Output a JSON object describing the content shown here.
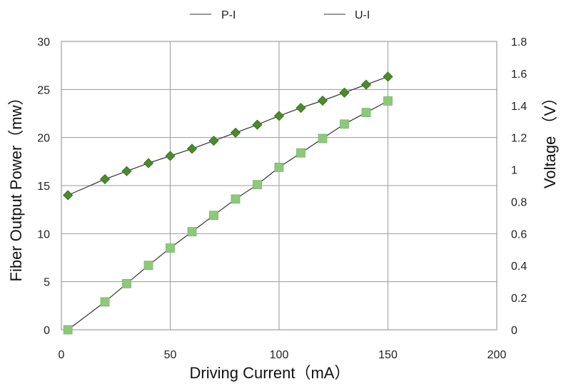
{
  "chart_data": {
    "type": "line",
    "x": [
      3,
      20,
      30,
      40,
      50,
      60,
      70,
      80,
      90,
      100,
      110,
      120,
      130,
      140,
      150
    ],
    "series": [
      {
        "name": "P-I",
        "axis": "left",
        "marker": "square",
        "marker_color": "#8cc97a",
        "line_color": "#333333",
        "values": [
          0,
          2.9,
          4.8,
          6.7,
          8.5,
          10.2,
          11.9,
          13.6,
          15.1,
          16.9,
          18.4,
          19.9,
          21.4,
          22.6,
          23.8
        ]
      },
      {
        "name": "U-I",
        "axis": "right",
        "marker": "diamond",
        "marker_color": "#4a8c2a",
        "line_color": "#333333",
        "values": [
          0.84,
          0.94,
          0.99,
          1.04,
          1.085,
          1.13,
          1.18,
          1.23,
          1.28,
          1.335,
          1.385,
          1.43,
          1.48,
          1.53,
          1.58
        ]
      }
    ],
    "xlabel": "Driving Current（mA）",
    "ylabel": "Fiber Output Power（mw）",
    "y2label": "Voltage （V）",
    "xlim": [
      0,
      200
    ],
    "ylim": [
      0,
      30
    ],
    "y2lim": [
      0,
      1.8
    ],
    "x_ticks": [
      "0",
      "50",
      "100",
      "150",
      "200"
    ],
    "y_ticks": [
      "0",
      "5",
      "10",
      "15",
      "20",
      "25",
      "30"
    ],
    "y2_ticks": [
      "0",
      "0.2",
      "0.4",
      "0.6",
      "0.8",
      "1",
      "1.2",
      "1.4",
      "1.6",
      "1.8"
    ],
    "grid": true,
    "legend_placement": "top"
  }
}
